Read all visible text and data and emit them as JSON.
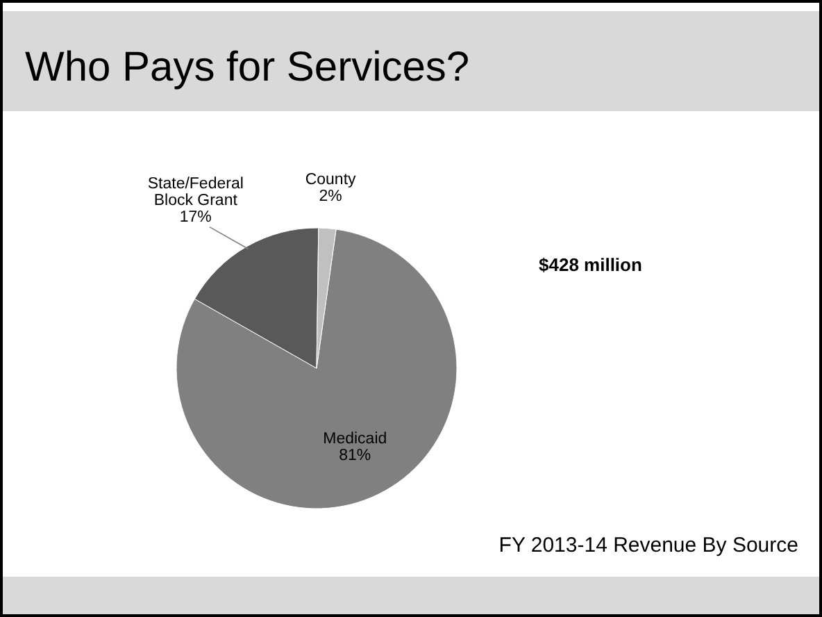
{
  "chart_data": {
    "type": "pie",
    "title": "Who Pays for Services?",
    "categories": [
      "Medicaid",
      "State/Federal Block Grant",
      "County"
    ],
    "values": [
      81,
      17,
      2
    ],
    "colors": [
      "#808080",
      "#595959",
      "#c0c0c0"
    ],
    "value_labels": [
      "81%",
      "17%",
      "2%"
    ],
    "annotations": [
      "$428 million",
      "FY 2013-14 Revenue By Source"
    ]
  }
}
